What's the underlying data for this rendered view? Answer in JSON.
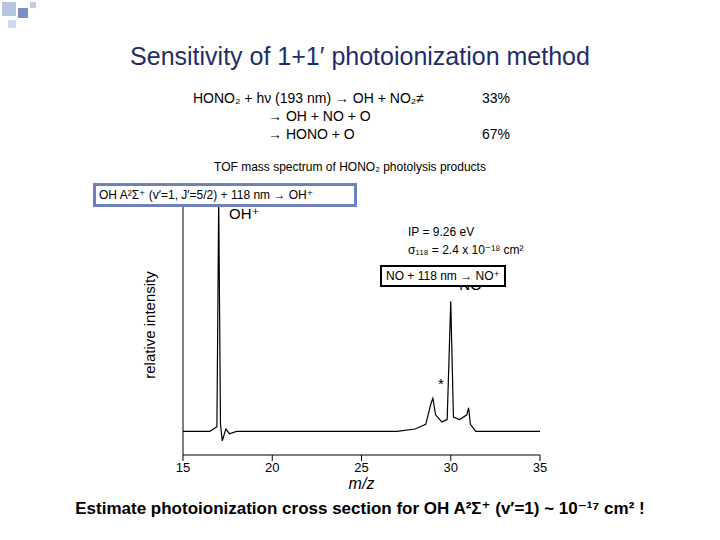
{
  "slide": {
    "title": "Sensitivity of 1+1′ photoionization method",
    "reactions": [
      {
        "text": "HONO₂ + hν (193 nm) → OH + NO₂≠",
        "branching": "33%"
      },
      {
        "text": "→ OH + NO + O"
      },
      {
        "text": "→ HONO + O",
        "branching": "67%"
      }
    ],
    "subtitle": "TOF mass spectrum of HONO₂ photolysis products",
    "oh_box": "OH A²Σ⁺ (v′=1, J′=5/2) + 118 nm → OH⁺",
    "ip_text": "IP = 9.26 eV",
    "sigma_text": "σ₁₁₈ = 2.4 x 10⁻¹⁸ cm²",
    "no_box": "NO + 118 nm → NO⁺",
    "conclusion": "Estimate photoionization cross section for OH A²Σ⁺ (v′=1) ~ 10⁻¹⁷ cm² !"
  },
  "chart_data": {
    "type": "line",
    "x_label": "m/z",
    "y_label": "relative intensity",
    "x": [
      15,
      16.5,
      16.9,
      17.0,
      17.1,
      17.2,
      17.4,
      17.6,
      18,
      20,
      25,
      27,
      28,
      28.6,
      28.9,
      29.0,
      29.15,
      29.5,
      29.8,
      30.0,
      30.15,
      30.5,
      30.9,
      31.0,
      31.1,
      31.4,
      32,
      35
    ],
    "values": [
      0,
      0,
      0.02,
      0.98,
      0.03,
      -0.04,
      0.01,
      -0.01,
      0,
      0,
      0,
      0,
      0.01,
      0.03,
      0.12,
      0.14,
      0.07,
      0.04,
      0.05,
      0.55,
      0.06,
      0.05,
      0.07,
      0.1,
      0.03,
      0,
      0,
      0
    ],
    "color": "#000000",
    "xlim": [
      15,
      35
    ],
    "xticks": [
      15,
      20,
      25,
      30,
      35
    ],
    "ylim": [
      -0.1,
      1.0
    ],
    "yticks": [
      0,
      0.2,
      0.4,
      0.6,
      0.8,
      1.0
    ],
    "tick_labels": "x",
    "annotations": [
      {
        "x": 17.3,
        "y": 0.92,
        "label": "OH⁺"
      },
      {
        "x": 29.0,
        "y": 0.2,
        "label": "*"
      },
      {
        "x": 30.2,
        "y": 0.62,
        "label": "NO⁺"
      }
    ]
  }
}
